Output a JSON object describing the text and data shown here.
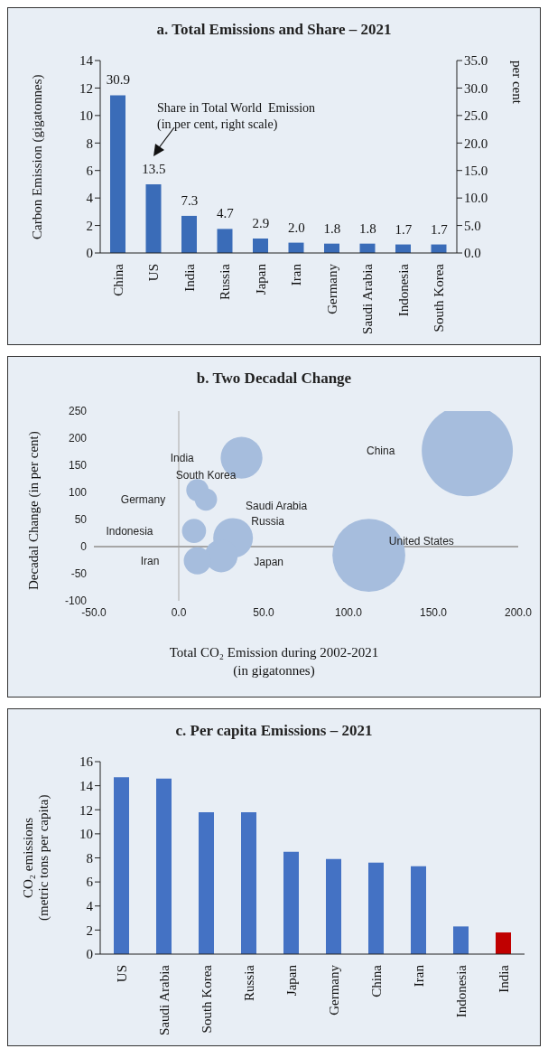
{
  "chart_data": [
    {
      "type": "bar",
      "title": "a. Total Emissions and Share – 2021",
      "ylabel": "Carbon Emission (gigatonnes)",
      "y2label": "per cent",
      "categories": [
        "China",
        "US",
        "India",
        "Russia",
        "Japan",
        "Iran",
        "Germany",
        "Saudi Arabia",
        "Indonesia",
        "South Korea"
      ],
      "series": [
        {
          "type": "bar",
          "color": "#3a6cb8",
          "values": [
            11.47,
            5.0,
            2.7,
            1.75,
            1.05,
            0.75,
            0.68,
            0.68,
            0.62,
            0.62
          ]
        }
      ],
      "ylim": [
        0,
        14
      ],
      "yticks": [
        0,
        2,
        4,
        6,
        8,
        10,
        12,
        14
      ],
      "y2lim": [
        0,
        35
      ],
      "y2ticks": [
        {
          "value": 0,
          "label": "0.0"
        },
        {
          "value": 5,
          "label": "5.0"
        },
        {
          "value": 10,
          "label": "10.0"
        },
        {
          "value": 15,
          "label": "15.0"
        },
        {
          "value": 20,
          "label": "20.0"
        },
        {
          "value": 25,
          "label": "25.0"
        },
        {
          "value": 30,
          "label": "30.0"
        },
        {
          "value": 35,
          "label": "35.0"
        }
      ],
      "annotations": [
        "Share in Total World  Emission\n(in per cent, right scale)",
        {
          "text": "30.9",
          "x": "China",
          "y": 11.47
        },
        {
          "text": "13.5",
          "x": "US",
          "y": 5.0
        },
        {
          "text": "7.3",
          "x": "India",
          "y": 2.7
        },
        {
          "text": "4.7",
          "x": "Russia",
          "y": 1.75
        },
        {
          "text": "2.9",
          "x": "Japan",
          "y": 1.05
        },
        {
          "text": "2.0",
          "x": "Iran",
          "y": 0.75
        },
        {
          "text": "1.8",
          "x": "Germany",
          "y": 0.68
        },
        {
          "text": "1.8",
          "x": "Saudi Arabia",
          "y": 0.68
        },
        {
          "text": "1.7",
          "x": "Indonesia",
          "y": 0.62
        },
        {
          "text": "1.7",
          "x": "South Korea",
          "y": 0.62
        }
      ],
      "grid": false,
      "legend": false
    },
    {
      "type": "bubble",
      "title": "b. Two Decadal Change",
      "xlabel": "Total CO₂ Emission during 2002-2021\n(in gigatonnes)",
      "ylabel": "Decadal Change (in per cent)",
      "x": [
        170,
        112,
        37,
        11,
        16,
        9,
        32,
        25,
        11
      ],
      "values": [
        177,
        -16,
        164,
        104,
        87,
        29,
        16,
        -17,
        -26
      ],
      "sizes": [
        1,
        0.64,
        0.21,
        0.06,
        0.06,
        0.07,
        0.19,
        0.13,
        0.09
      ],
      "color": "#a6bddd",
      "xlim": [
        -50,
        200
      ],
      "xticks": [
        {
          "value": -50,
          "label": "-50.0"
        },
        {
          "value": 0,
          "label": "0.0"
        },
        {
          "value": 50,
          "label": "50.0"
        },
        {
          "value": 100,
          "label": "100.0"
        },
        {
          "value": 150,
          "label": "150.0"
        },
        {
          "value": 200,
          "label": "200.0"
        }
      ],
      "ylim": [
        -100,
        250
      ],
      "yticks": [
        -100,
        -50,
        0,
        50,
        100,
        150,
        200,
        250
      ],
      "ref_lines": [
        {
          "axis": "x",
          "value": 0,
          "color": "#bfbfbf"
        },
        {
          "axis": "y",
          "value": 0,
          "color": "#a6a6a6"
        }
      ],
      "annotations": [
        "China",
        "India",
        "South Korea",
        "Germany",
        "Saudi Arabia",
        "Russia",
        "Indonesia",
        "United States",
        "Iran",
        "Japan"
      ],
      "grid": false,
      "legend": false
    },
    {
      "type": "bar",
      "title": "c. Per capita Emissions – 2021",
      "ylabel": "CO₂ emissions\n(metric tons per capita)",
      "categories": [
        "US",
        "Saudi Arabia",
        "South Korea",
        "Russia",
        "Japan",
        "Germany",
        "China",
        "Iran",
        "Indonesia",
        "India"
      ],
      "values": [
        14.7,
        14.6,
        11.8,
        11.8,
        8.5,
        7.9,
        7.6,
        7.3,
        2.3,
        1.8
      ],
      "colors": [
        "#4472c4",
        "#4472c4",
        "#4472c4",
        "#4472c4",
        "#4472c4",
        "#4472c4",
        "#4472c4",
        "#4472c4",
        "#4472c4",
        "#c00000"
      ],
      "ylim": [
        0,
        16
      ],
      "yticks": [
        0,
        2,
        4,
        6,
        8,
        10,
        12,
        14,
        16
      ],
      "grid": false,
      "legend": false
    }
  ]
}
